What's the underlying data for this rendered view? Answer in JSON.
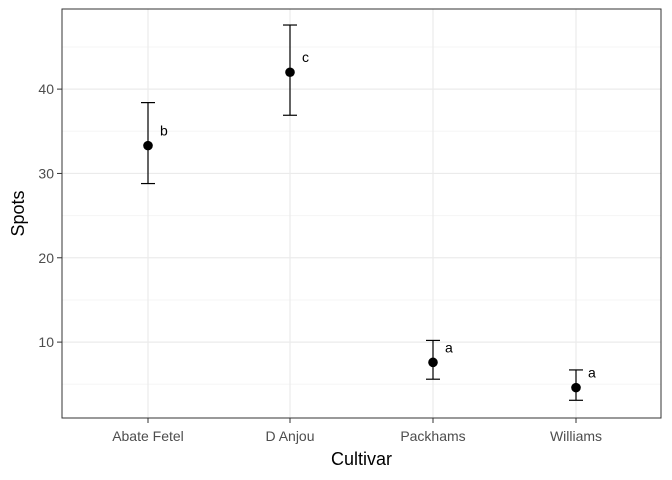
{
  "chart_data": {
    "type": "scatter",
    "xlabel": "Cultivar",
    "ylabel": "Spots",
    "categories": [
      "Abate Fetel",
      "D Anjou",
      "Packhams",
      "Williams"
    ],
    "values": [
      33.3,
      42.0,
      7.6,
      4.6
    ],
    "error_lower": [
      28.8,
      36.9,
      5.6,
      3.1
    ],
    "error_upper": [
      38.4,
      47.6,
      10.2,
      6.7
    ],
    "group_letters": [
      "b",
      "c",
      "a",
      "a"
    ],
    "ylim": [
      1,
      49.5
    ],
    "y_ticks": [
      10,
      20,
      30,
      40
    ],
    "y_tick_labels": [
      "10",
      "20",
      "30",
      "40"
    ],
    "grid": true,
    "theme": "bw",
    "colors": {
      "point": "#000000",
      "errorbar": "#000000",
      "grid_major": "#ebebeb",
      "grid_minor": "#f5f5f5",
      "panel_border": "#333333",
      "tick_label": "#4d4d4d"
    }
  }
}
